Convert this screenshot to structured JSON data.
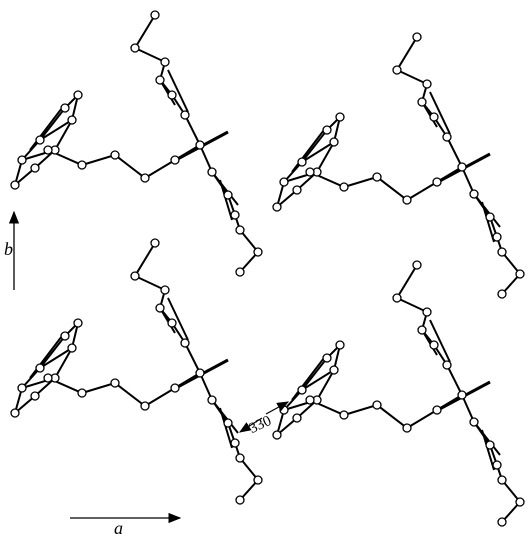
{
  "labels": {
    "axis_b": "b",
    "axis_a": "a",
    "distance": "330"
  }
}
